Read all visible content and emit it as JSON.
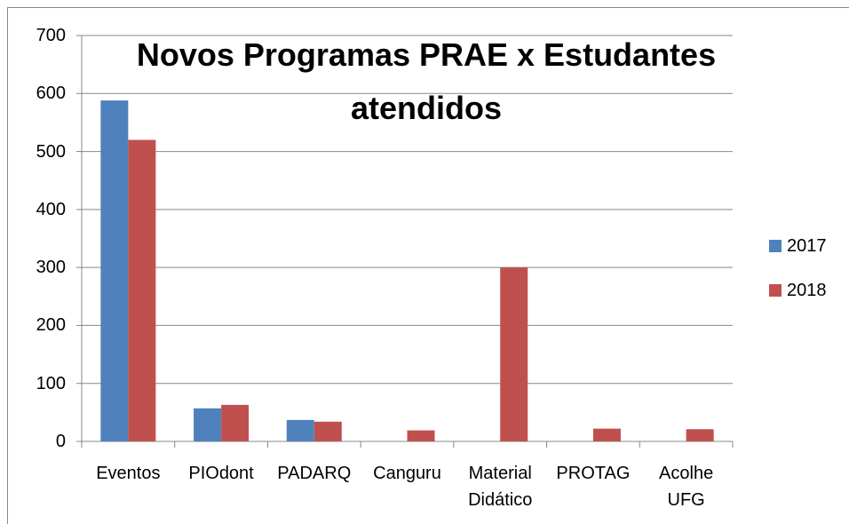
{
  "chart_data": {
    "type": "bar",
    "title": "Novos Programas PRAE x Estudantes atendidos",
    "categories": [
      "Eventos",
      "PIOdont",
      "PADARQ",
      "Canguru",
      "Material Didático",
      "PROTAG",
      "Acolhe UFG"
    ],
    "series": [
      {
        "name": "2017",
        "color": "#4f81bd",
        "values": [
          588,
          57,
          37,
          null,
          null,
          null,
          null
        ]
      },
      {
        "name": "2018",
        "color": "#c0504d",
        "values": [
          520,
          63,
          34,
          19,
          300,
          22,
          21
        ]
      }
    ],
    "ylim": [
      0,
      700
    ],
    "yticks": [
      0,
      100,
      200,
      300,
      400,
      500,
      600,
      700
    ],
    "grid": true,
    "legend": "right"
  }
}
